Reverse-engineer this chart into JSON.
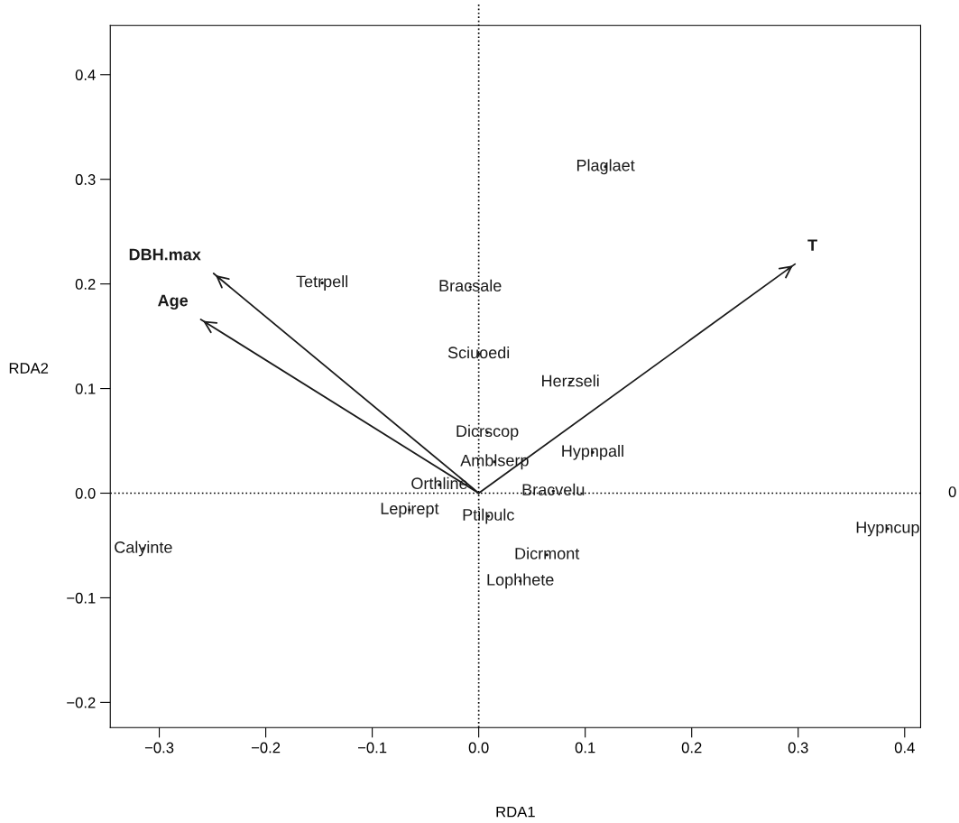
{
  "chart_data": {
    "type": "line",
    "xlabel": "RDA1",
    "ylabel": "RDA2",
    "xlim": [
      -0.346,
      0.415
    ],
    "ylim": [
      -0.224,
      0.447
    ],
    "xticks": [
      {
        "value": -0.3,
        "label": "−0.3"
      },
      {
        "value": -0.2,
        "label": "−0.2"
      },
      {
        "value": -0.1,
        "label": "−0.1"
      },
      {
        "value": 0,
        "label": "0.0"
      },
      {
        "value": 0.1,
        "label": "0.1"
      },
      {
        "value": 0.2,
        "label": "0.2"
      },
      {
        "value": 0.3,
        "label": "0.3"
      },
      {
        "value": 0.4,
        "label": "0.4"
      }
    ],
    "yticks": [
      {
        "value": -0.2,
        "label": "−0.2"
      },
      {
        "value": -0.1,
        "label": "−0.1"
      },
      {
        "value": 0,
        "label": "0.0"
      },
      {
        "value": 0.1,
        "label": "0.1"
      },
      {
        "value": 0.2,
        "label": "0.2"
      },
      {
        "value": 0.3,
        "label": "0.3"
      },
      {
        "value": 0.4,
        "label": "0.4"
      }
    ],
    "ref_lines": [
      {
        "axis": "x",
        "value": 0,
        "line_style": "dotted",
        "color": "#000000"
      },
      {
        "axis": "y",
        "value": 0,
        "label": "0",
        "line_style": "dotted",
        "color": "#000000"
      }
    ],
    "series": [
      {
        "type": "scatter",
        "color": "#1a1a1a",
        "x": [
          0.119,
          -0.147,
          -0.008,
          0.0,
          0.086,
          0.008,
          0.015,
          0.107,
          -0.037,
          0.07,
          -0.065,
          0.009,
          -0.315,
          0.384,
          0.064,
          0.039
        ],
        "values": [
          0.312,
          0.201,
          0.197,
          0.133,
          0.106,
          0.058,
          0.03,
          0.039,
          0.008,
          0.002,
          -0.016,
          -0.022,
          -0.053,
          -0.034,
          -0.059,
          -0.084
        ],
        "value_labels": [
          "Plaglaet",
          "Tetrpell",
          "Bracsale",
          "Sciuoedi",
          "Herzseli",
          "Dicrscop",
          "Amblserp",
          "Hypnpall",
          "Orthline",
          "Bracvelu",
          "Lepirept",
          "Ptilpulc",
          "Calyinte",
          "Hypncup",
          "Dicrmont",
          "Lophhete"
        ]
      },
      {
        "name": "DBH.max",
        "color": "#1a1a1a",
        "x": [
          0,
          -0.249
        ],
        "values": [
          0,
          0.21
        ]
      },
      {
        "name": "Age",
        "color": "#1a1a1a",
        "x": [
          0,
          -0.261
        ],
        "values": [
          0,
          0.166
        ]
      },
      {
        "name": "T",
        "color": "#1a1a1a",
        "x": [
          0,
          0.297
        ],
        "values": [
          0,
          0.219
        ]
      }
    ]
  }
}
